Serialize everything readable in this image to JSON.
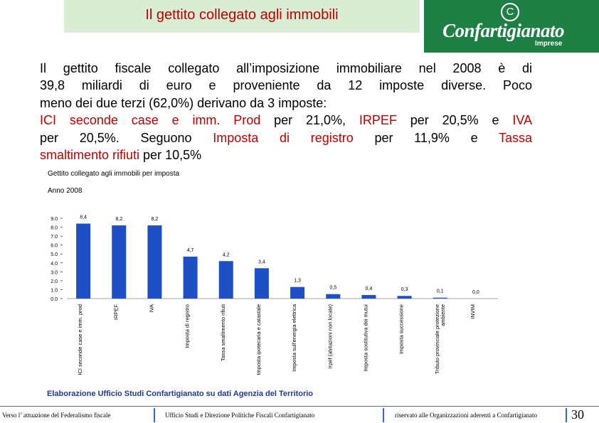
{
  "header": {
    "title": "Il gettito collegato agli immobili"
  },
  "logo": {
    "symbol": "C",
    "name": "Confartigianato",
    "sub": "Imprese"
  },
  "intro": {
    "line1": "Il gettito fiscale collegato all’imposizione immobiliare nel 2008 è di",
    "line2": "39,8 miliardi di euro e proveniente da 12 imposte diverse. Poco",
    "line3": "meno dei due terzi (62,0%) derivano da 3 imposte:",
    "line4_a": "ICI seconde case e imm. Prod",
    "line4_b": " per  21,0%, ",
    "line4_c": "IRPEF",
    "line4_d": " per  20,5% e ",
    "line4_e": "IVA",
    "line5_a": "per  20,5%. Seguono ",
    "line5_b": "Imposta di registro",
    "line5_c": " per 11,9% e ",
    "line5_d": "Tassa",
    "line6_a": "smaltimento rifiuti",
    "line6_b": " per 10,5%"
  },
  "chart_data": {
    "type": "bar",
    "title": "Gettito collegato agli immobili per  imposta",
    "subtitle": "Anno 2008",
    "categories": [
      "ICI seconde case e imm. prod",
      "IRPEF",
      "IVA",
      "Imposta di registro",
      "Tassa smaltimento rifiuti",
      "Imposta ipotecaria e catastale",
      "Imposta sull'energia elettrica",
      "Irpef (abitazioni non locate)",
      "Imposta sostitutiva dei mutui",
      "Imposta successione",
      "Tributo provinciale protezione ambiente",
      "INVIM"
    ],
    "tick_labels": [
      [
        "ICI seconde case e imm. prod"
      ],
      [
        "IRPEF"
      ],
      [
        "IVA"
      ],
      [
        "Imposta di registro"
      ],
      [
        "Tassa smaltimento rifiuti"
      ],
      [
        "Imposta ipotecaria e catastale"
      ],
      [
        "Imposta sull'energia elettrica"
      ],
      [
        "Irpef (abitazioni non locate)"
      ],
      [
        "Imposta sostitutiva dei mutui"
      ],
      [
        "Imposta successione"
      ],
      [
        "Tributo provinciale protezione",
        "ambiente"
      ],
      [
        "INVIM"
      ]
    ],
    "values": [
      8.4,
      8.2,
      8.2,
      4.7,
      4.2,
      3.4,
      1.3,
      0.5,
      0.4,
      0.3,
      0.1,
      0.0
    ],
    "value_labels": [
      "8,4",
      "8,2",
      "8,2",
      "4,7",
      "4,2",
      "3,4",
      "1,3",
      "0,5",
      "0,4",
      "0,3",
      "0,1",
      "0,0"
    ],
    "yticks": [
      "0.0",
      "1.0",
      "2.0",
      "3.0",
      "4.0",
      "5.0",
      "6.0",
      "7.0",
      "8.0",
      "9.0"
    ],
    "ylim": [
      0,
      9
    ],
    "grid": false,
    "bar_color": "#1f4fc4"
  },
  "source": "Elaborazione Ufficio Studi Confartigianato su dati Agenzia del Territorio",
  "footer": {
    "left": "Verso l’ attuazione del Federalismo fiscale",
    "middle": "Ufficio Studi e Direzione Politiche Fiscali Confartigianato",
    "right": "riservato alle Organizzazioni aderenti a Confartigianato",
    "page": "30"
  }
}
